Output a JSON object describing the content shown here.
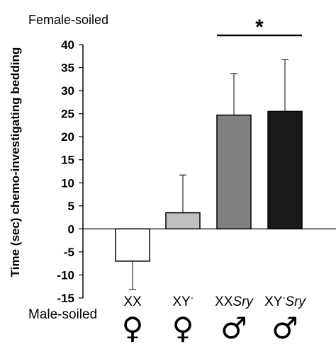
{
  "chart_data": {
    "type": "bar",
    "title": "",
    "top_label": "Female-soiled",
    "bottom_label": "Male-soiled",
    "ylabel": "Time (sec) chemo-investigating bedding",
    "xlabel": "",
    "ylim": [
      -15,
      40
    ],
    "yticks": [
      40,
      35,
      30,
      25,
      20,
      15,
      10,
      5,
      0,
      -5,
      -10,
      -15
    ],
    "grid": false,
    "categories": [
      {
        "main": "XX",
        "sup": "",
        "italic": "",
        "symbol": "♀"
      },
      {
        "main": "XY",
        "sup": "-",
        "italic": "",
        "symbol": "♀"
      },
      {
        "main": "XX",
        "sup": "",
        "italic": "Sry",
        "symbol": "♂"
      },
      {
        "main": "XY",
        "sup": "-",
        "italic": "Sry",
        "symbol": "♂"
      }
    ],
    "values": [
      -7.0,
      3.5,
      24.7,
      25.5
    ],
    "error_upper": [
      -13.2,
      11.7,
      33.7,
      36.7
    ],
    "bar_colors": [
      "#ffffff",
      "#c0c0c0",
      "#808080",
      "#1a1a1a"
    ],
    "significance": {
      "label": "*",
      "from": 2,
      "to": 3
    }
  }
}
